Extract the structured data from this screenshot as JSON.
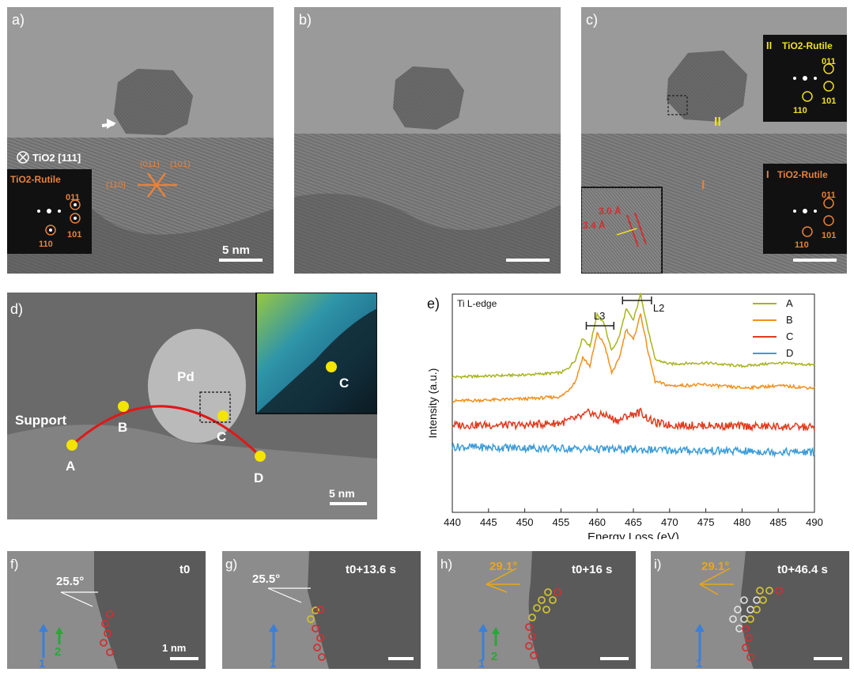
{
  "panels": {
    "a": {
      "label": "a)",
      "zone_axis": "TiO2 [111]",
      "fft_title": "TiO2-Rutile",
      "fft_spots": [
        "011",
        "101",
        "110"
      ],
      "orange_labels": [
        "(011)",
        "(101)",
        "(110)"
      ],
      "scale_bar": "5 nm"
    },
    "b": {
      "label": "b)"
    },
    "c": {
      "label": "c)",
      "roman_top": "II",
      "roman_bottom": "I",
      "fft_top_title": "TiO2-Rutile",
      "fft_top_spots": [
        "011",
        "101",
        "110"
      ],
      "fft_bottom_title": "TiO2-Rutile",
      "fft_bottom_spots": [
        "011",
        "101",
        "110"
      ],
      "region_label_ii": "II",
      "region_label_i": "I",
      "d_spacings": [
        "3.0 Å",
        "3.4 Å"
      ]
    },
    "d": {
      "label": "d)",
      "particle_label": "Pd",
      "support_label": "Support",
      "points": [
        "A",
        "B",
        "C",
        "D"
      ],
      "inset_point": "C",
      "scale_bar": "5 nm"
    },
    "f": {
      "label": "f)",
      "time": "t0",
      "angle": "25.5°",
      "arrow_labels": [
        "1",
        "2"
      ],
      "scale_bar": "1 nm"
    },
    "g": {
      "label": "g)",
      "time": "t0+13.6 s",
      "angle": "25.5°",
      "arrow_labels": [
        "1"
      ]
    },
    "h": {
      "label": "h)",
      "time": "t0+16 s",
      "angle": "29.1°",
      "arrow_labels": [
        "1",
        "2"
      ]
    },
    "i": {
      "label": "i)",
      "time": "t0+46.4 s",
      "angle": "29.1°",
      "arrow_labels": [
        "1"
      ]
    }
  },
  "chart_data": {
    "type": "line",
    "panel_label": "e)",
    "title": "Ti L-edge",
    "xlabel": "Energy Loss (eV)",
    "ylabel": "Intensity (a.u.)",
    "xlim": [
      440,
      490
    ],
    "xticks": [
      440,
      445,
      450,
      455,
      460,
      465,
      470,
      475,
      480,
      485,
      490
    ],
    "edge_labels": [
      "L3",
      "L2"
    ],
    "legend_position": "top-right",
    "series": [
      {
        "name": "A",
        "color": "#a8b41e",
        "x": [
          440,
          450,
          455,
          456,
          457,
          458,
          459,
          460,
          461,
          462,
          463,
          464,
          465,
          466,
          467,
          468,
          470,
          475,
          480,
          485,
          490
        ],
        "y": [
          0.62,
          0.63,
          0.64,
          0.66,
          0.7,
          0.8,
          0.76,
          0.91,
          0.86,
          0.74,
          0.8,
          0.93,
          0.88,
          1.0,
          0.84,
          0.7,
          0.68,
          0.685,
          0.67,
          0.685,
          0.675
        ]
      },
      {
        "name": "B",
        "color": "#f0901c",
        "x": [
          440,
          450,
          455,
          456,
          457,
          458,
          459,
          460,
          461,
          462,
          463,
          464,
          465,
          466,
          467,
          468,
          470,
          475,
          480,
          485,
          490
        ],
        "y": [
          0.51,
          0.52,
          0.53,
          0.56,
          0.6,
          0.71,
          0.67,
          0.82,
          0.77,
          0.64,
          0.7,
          0.84,
          0.79,
          0.91,
          0.74,
          0.6,
          0.58,
          0.585,
          0.57,
          0.58,
          0.57
        ]
      },
      {
        "name": "C",
        "color": "#e03a1e",
        "x": [
          440,
          450,
          455,
          458,
          459,
          460,
          461,
          462,
          463,
          464,
          465,
          466,
          467,
          468,
          470,
          480,
          490
        ],
        "y": [
          0.4,
          0.4,
          0.41,
          0.44,
          0.46,
          0.44,
          0.45,
          0.43,
          0.42,
          0.44,
          0.45,
          0.46,
          0.43,
          0.41,
          0.4,
          0.395,
          0.39
        ]
      },
      {
        "name": "D",
        "color": "#3c9cd8",
        "x": [
          440,
          450,
          460,
          470,
          480,
          490
        ],
        "y": [
          0.3,
          0.295,
          0.29,
          0.285,
          0.28,
          0.275
        ]
      }
    ]
  }
}
